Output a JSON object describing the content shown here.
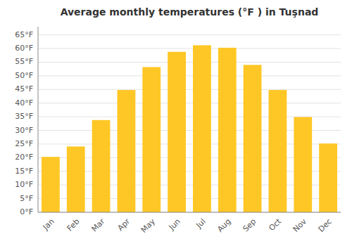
{
  "chart_data": {
    "type": "bar",
    "title": "Average monthly temperatures (°F ) in Tuşnad",
    "categories": [
      "Jan",
      "Feb",
      "Mar",
      "Apr",
      "May",
      "Jun",
      "Jul",
      "Aug",
      "Sep",
      "Oct",
      "Nov",
      "Dec"
    ],
    "values": [
      20.3,
      24.1,
      33.8,
      44.8,
      53.2,
      58.8,
      61.2,
      60.3,
      54.0,
      44.8,
      34.9,
      25.2
    ],
    "color": "#FFC726",
    "ylim": [
      0,
      68
    ],
    "yticks": [
      {
        "value": 0,
        "label": "0°F"
      },
      {
        "value": 5,
        "label": "5°F"
      },
      {
        "value": 10,
        "label": "10°F"
      },
      {
        "value": 15,
        "label": "15°F"
      },
      {
        "value": 20,
        "label": "20°F"
      },
      {
        "value": 25,
        "label": "25°F"
      },
      {
        "value": 30,
        "label": "30°F"
      },
      {
        "value": 35,
        "label": "35°F"
      },
      {
        "value": 40,
        "label": "40°F"
      },
      {
        "value": 45,
        "label": "45°F"
      },
      {
        "value": 50,
        "label": "50°F"
      },
      {
        "value": 55,
        "label": "55°F"
      },
      {
        "value": 60,
        "label": "60°F"
      },
      {
        "value": 65,
        "label": "65°F"
      }
    ],
    "grid": true
  }
}
